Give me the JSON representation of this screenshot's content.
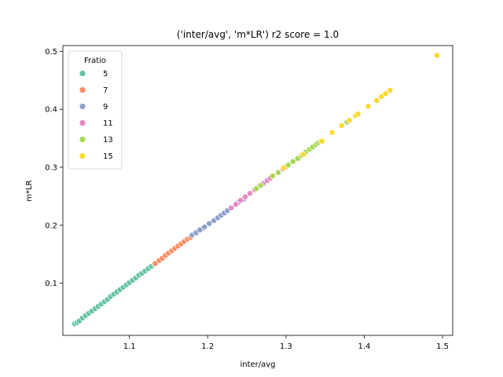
{
  "chart_data": {
    "type": "scatter",
    "title": "('inter/avg', 'm*LR') r2 score = 1.0",
    "xlabel": "inter/avg",
    "ylabel": "m*LR",
    "xlim": [
      1.015,
      1.513
    ],
    "ylim": [
      0.01,
      0.51
    ],
    "xticks": [
      "1.1",
      "1.2",
      "1.3",
      "1.4",
      "1.5"
    ],
    "yticks": [
      "0.1",
      "0.2",
      "0.3",
      "0.4",
      "0.5"
    ],
    "grid": false,
    "legend": {
      "title": "Fratio",
      "position": "top-left"
    },
    "series": [
      {
        "name": "5",
        "color": "#66c2a5",
        "points": [
          [
            1.03,
            0.03
          ],
          [
            1.033,
            0.032
          ],
          [
            1.036,
            0.035
          ],
          [
            1.04,
            0.04
          ],
          [
            1.044,
            0.044
          ],
          [
            1.048,
            0.048
          ],
          [
            1.052,
            0.052
          ],
          [
            1.056,
            0.056
          ],
          [
            1.06,
            0.06
          ],
          [
            1.064,
            0.064
          ],
          [
            1.068,
            0.068
          ],
          [
            1.072,
            0.072
          ],
          [
            1.076,
            0.077
          ],
          [
            1.08,
            0.081
          ],
          [
            1.084,
            0.085
          ],
          [
            1.088,
            0.089
          ],
          [
            1.092,
            0.093
          ],
          [
            1.096,
            0.097
          ],
          [
            1.1,
            0.101
          ],
          [
            1.104,
            0.105
          ],
          [
            1.108,
            0.109
          ],
          [
            1.112,
            0.114
          ],
          [
            1.116,
            0.117
          ],
          [
            1.12,
            0.121
          ],
          [
            1.124,
            0.125
          ],
          [
            1.128,
            0.129
          ],
          [
            1.132,
            0.133
          ],
          [
            1.138,
            0.14
          ]
        ]
      },
      {
        "name": "7",
        "color": "#fc8d62",
        "points": [
          [
            1.133,
            0.134
          ],
          [
            1.138,
            0.139
          ],
          [
            1.142,
            0.143
          ],
          [
            1.146,
            0.148
          ],
          [
            1.15,
            0.152
          ],
          [
            1.154,
            0.156
          ],
          [
            1.158,
            0.16
          ],
          [
            1.162,
            0.164
          ],
          [
            1.166,
            0.168
          ],
          [
            1.17,
            0.172
          ],
          [
            1.174,
            0.176
          ],
          [
            1.178,
            0.179
          ],
          [
            1.186,
            0.186
          ],
          [
            1.19,
            0.191
          ],
          [
            1.194,
            0.195
          ]
        ]
      },
      {
        "name": "9",
        "color": "#8da0cb",
        "points": [
          [
            1.18,
            0.183
          ],
          [
            1.185,
            0.187
          ],
          [
            1.19,
            0.192
          ],
          [
            1.196,
            0.197
          ],
          [
            1.202,
            0.203
          ],
          [
            1.208,
            0.208
          ],
          [
            1.213,
            0.213
          ],
          [
            1.217,
            0.217
          ],
          [
            1.221,
            0.221
          ],
          [
            1.225,
            0.225
          ],
          [
            1.239,
            0.239
          ],
          [
            1.246,
            0.245
          ]
        ]
      },
      {
        "name": "11",
        "color": "#e78ac3",
        "points": [
          [
            1.23,
            0.23
          ],
          [
            1.236,
            0.236
          ],
          [
            1.242,
            0.243
          ],
          [
            1.248,
            0.249
          ],
          [
            1.254,
            0.255
          ],
          [
            1.26,
            0.261
          ],
          [
            1.266,
            0.267
          ],
          [
            1.271,
            0.272
          ],
          [
            1.276,
            0.277
          ],
          [
            1.28,
            0.281
          ],
          [
            1.296,
            0.297
          ],
          [
            1.3,
            0.301
          ]
        ]
      },
      {
        "name": "13",
        "color": "#a6d854",
        "points": [
          [
            1.262,
            0.263
          ],
          [
            1.268,
            0.269
          ],
          [
            1.283,
            0.285
          ],
          [
            1.29,
            0.291
          ],
          [
            1.303,
            0.304
          ],
          [
            1.309,
            0.31
          ],
          [
            1.315,
            0.315
          ],
          [
            1.32,
            0.32
          ],
          [
            1.325,
            0.326
          ],
          [
            1.33,
            0.331
          ],
          [
            1.334,
            0.335
          ],
          [
            1.338,
            0.339
          ],
          [
            1.341,
            0.342
          ],
          [
            1.344,
            0.344
          ],
          [
            1.378,
            0.378
          ]
        ]
      },
      {
        "name": "15",
        "color": "#ffd92f",
        "points": [
          [
            1.297,
            0.299
          ],
          [
            1.322,
            0.322
          ],
          [
            1.346,
            0.345
          ],
          [
            1.359,
            0.36
          ],
          [
            1.371,
            0.372
          ],
          [
            1.381,
            0.381
          ],
          [
            1.389,
            0.389
          ],
          [
            1.392,
            0.392
          ],
          [
            1.405,
            0.405
          ],
          [
            1.416,
            0.415
          ],
          [
            1.422,
            0.422
          ],
          [
            1.427,
            0.427
          ],
          [
            1.433,
            0.433
          ],
          [
            1.493,
            0.493
          ]
        ]
      }
    ]
  }
}
